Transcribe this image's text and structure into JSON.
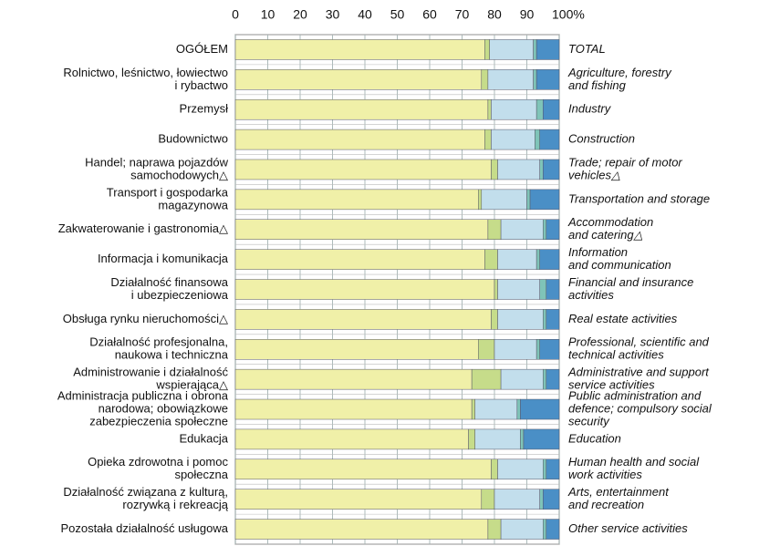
{
  "chart_data": {
    "type": "stacked_bar_horizontal",
    "categories": [
      [
        "OGÓŁEM"
      ],
      [
        "Rolnictwo, leśnictwo, łowiectwo",
        "i rybactwo"
      ],
      [
        "Przemysł"
      ],
      [
        "Budownictwo"
      ],
      [
        "Handel; naprawa pojazdów",
        "samochodowych△"
      ],
      [
        "Transport i gospodarka",
        "magazynowa"
      ],
      [
        "Zakwaterowanie i gastronomia△"
      ],
      [
        "Informacja i komunikacja"
      ],
      [
        "Działalność finansowa",
        "i ubezpieczeniowa"
      ],
      [
        "Obsługa rynku nieruchomości△"
      ],
      [
        "Działalność profesjonalna,",
        "naukowa i techniczna"
      ],
      [
        "Administrowanie i działalność",
        "wspierająca△"
      ],
      [
        "Administracja publiczna i obrona",
        "narodowa; obowiązkowe",
        "zabezpieczenia społeczne"
      ],
      [
        "Edukacja"
      ],
      [
        "Opieka zdrowotna i pomoc",
        "społeczna"
      ],
      [
        "Działalność związana z kulturą,",
        "rozrywką i rekreacją"
      ],
      [
        "Pozostała działalność usługowa"
      ]
    ],
    "categories_en": [
      [
        "TOTAL"
      ],
      [
        "Agriculture, forestry",
        "and fishing"
      ],
      [
        "Industry"
      ],
      [
        "Construction"
      ],
      [
        "Trade; repair of motor",
        "vehicles△"
      ],
      [
        "Transportation and storage"
      ],
      [
        "Accommodation",
        "and catering△"
      ],
      [
        "Information",
        "and communication"
      ],
      [
        "Financial and insurance",
        "activities"
      ],
      [
        "Real estate activities"
      ],
      [
        "Professional, scientific and",
        "technical activities"
      ],
      [
        "Administrative and support",
        "service activities"
      ],
      [
        "Public administration and",
        "defence; compulsory social",
        "security"
      ],
      [
        "Education"
      ],
      [
        "Human health and social",
        "work activities"
      ],
      [
        "Arts, entertainment",
        "and recreation"
      ],
      [
        "Other service activities"
      ]
    ],
    "series": [
      {
        "color": "#f0f0a8",
        "values": [
          77,
          76,
          78,
          77,
          79,
          75,
          78,
          77,
          80,
          79,
          75,
          73,
          73,
          72,
          79,
          76,
          78
        ]
      },
      {
        "color": "#c6dc8a",
        "values": [
          1.5,
          2,
          1,
          2,
          2,
          1,
          4,
          4,
          1,
          2,
          5,
          9,
          1,
          2,
          2,
          4,
          4
        ]
      },
      {
        "color": "#c2deec",
        "values": [
          13.5,
          14,
          14,
          13.5,
          13,
          14,
          13,
          12,
          13,
          14,
          13,
          13,
          13,
          14,
          14,
          14,
          13
        ]
      },
      {
        "color": "#7fc4b8",
        "values": [
          1,
          1,
          2,
          1.5,
          1,
          1,
          1,
          1,
          2,
          1,
          1,
          1,
          1,
          1,
          1,
          1,
          1
        ]
      },
      {
        "color": "#4a8fc6",
        "values": [
          7,
          7,
          5,
          6,
          5,
          9,
          4,
          6,
          4,
          4,
          6,
          4,
          12,
          11,
          4,
          5,
          4
        ]
      }
    ],
    "xlim": [
      0,
      100
    ],
    "xticks": [
      0,
      10,
      20,
      30,
      40,
      50,
      60,
      70,
      80,
      90,
      {
        "value": 100,
        "label": "100%"
      }
    ]
  }
}
